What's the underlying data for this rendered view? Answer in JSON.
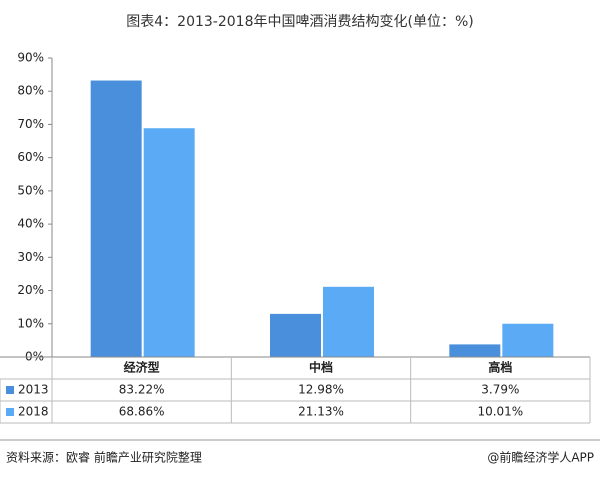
{
  "chart_data": {
    "type": "bar",
    "title": "图表4：2013-2018年中国啤酒消费结构变化(单位：%)",
    "categories": [
      "经济型",
      "中档",
      "高档"
    ],
    "series": [
      {
        "name": "2013",
        "color": "#4a8fdb",
        "values": [
          83.22,
          12.98,
          3.79
        ],
        "value_labels": [
          "83.22%",
          "12.98%",
          "3.79%"
        ]
      },
      {
        "name": "2018",
        "color": "#5aaaf5",
        "values": [
          68.86,
          21.13,
          10.01
        ],
        "value_labels": [
          "68.86%",
          "21.13%",
          "10.01%"
        ]
      }
    ],
    "ylim": [
      0,
      90
    ],
    "yticks": [
      {
        "value": 0,
        "label": "0%"
      },
      {
        "value": 10,
        "label": "10%"
      },
      {
        "value": 20,
        "label": "20%"
      },
      {
        "value": 30,
        "label": "30%"
      },
      {
        "value": 40,
        "label": "40%"
      },
      {
        "value": 50,
        "label": "50%"
      },
      {
        "value": 60,
        "label": "60%"
      },
      {
        "value": 70,
        "label": "70%"
      },
      {
        "value": 80,
        "label": "80%"
      },
      {
        "value": 90,
        "label": "90%"
      }
    ],
    "grid": false,
    "source": "资料来源：欧睿 前瞻产业研究院整理",
    "credit": "@前瞻经济学人APP"
  }
}
